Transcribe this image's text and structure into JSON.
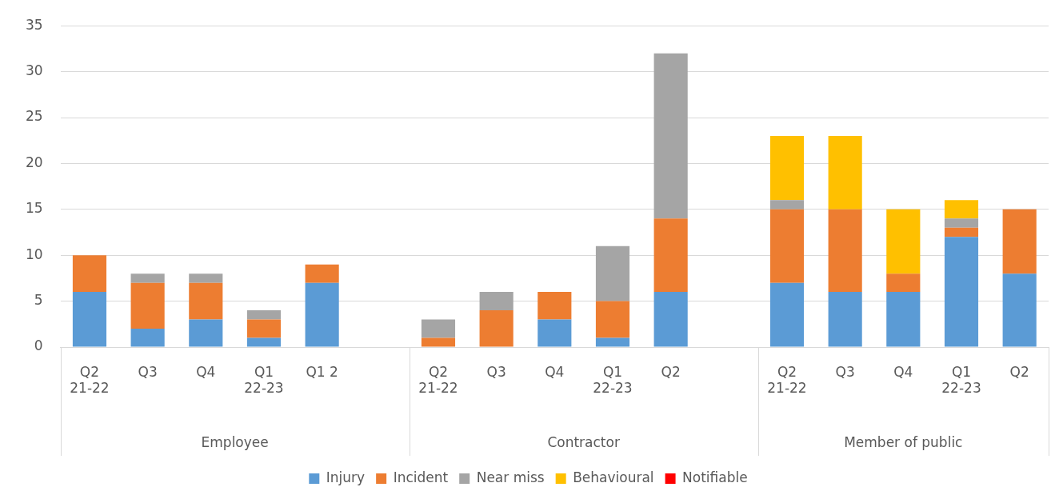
{
  "chart_data": {
    "type": "bar",
    "stacked": true,
    "categories": [
      "Q2\n21-22",
      "Q3",
      "Q4",
      "Q1\n22-23",
      "Q1 2",
      null,
      "Q2\n21-22",
      "Q3",
      "Q4",
      "Q1\n22-23",
      "Q2",
      null,
      "Q2\n21-22",
      "Q3",
      "Q4",
      "Q1\n22-23",
      "Q2"
    ],
    "series": [
      {
        "name": "Injury",
        "color": "#5b9bd5",
        "values": [
          6,
          2,
          3,
          1,
          7,
          null,
          0,
          0,
          3,
          1,
          6,
          null,
          7,
          6,
          6,
          12,
          8
        ]
      },
      {
        "name": "Incident",
        "color": "#ed7d31",
        "values": [
          4,
          5,
          4,
          2,
          2,
          null,
          1,
          4,
          3,
          4,
          8,
          null,
          8,
          9,
          2,
          1,
          7
        ]
      },
      {
        "name": "Near miss",
        "color": "#a5a5a5",
        "values": [
          0,
          1,
          1,
          1,
          0,
          null,
          2,
          2,
          0,
          6,
          18,
          null,
          1,
          0,
          0,
          1,
          0
        ]
      },
      {
        "name": "Behavioural",
        "color": "#ffc000",
        "values": [
          0,
          0,
          0,
          0,
          0,
          null,
          0,
          0,
          0,
          0,
          0,
          null,
          7,
          8,
          7,
          2,
          0
        ]
      },
      {
        "name": "Notifiable",
        "color": "#ff0000",
        "values": [
          0,
          0,
          0,
          0,
          0,
          null,
          0,
          0,
          0,
          0,
          0,
          null,
          0,
          0,
          0,
          0,
          0
        ]
      }
    ],
    "ylim": [
      0,
      35
    ],
    "yticks": [
      0,
      5,
      10,
      15,
      20,
      25,
      30,
      35
    ],
    "grid": "y",
    "legend": "bottom",
    "annotations": [
      "Employee",
      "Contractor",
      "Member of public"
    ]
  }
}
